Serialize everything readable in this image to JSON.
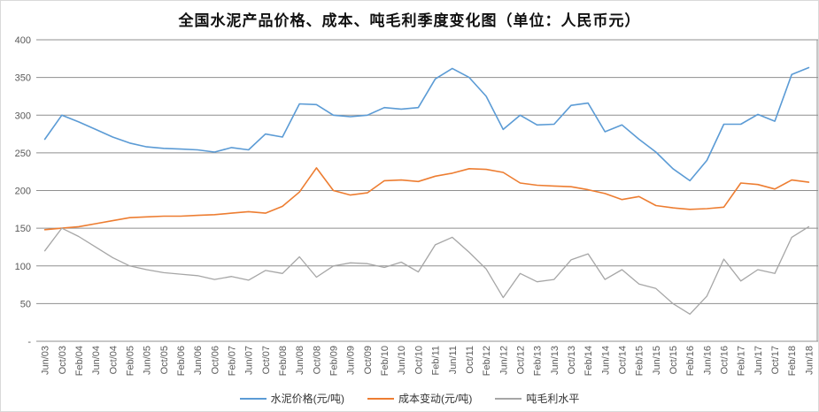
{
  "title": "全国水泥产品价格、成本、吨毛利季度变化图（单位：人民币元）",
  "colors": {
    "price_line": "#5b9bd5",
    "cost_line": "#ed7d31",
    "margin_line": "#a6a6a6",
    "gridline": "#8f8f8f",
    "tick_text": "#595959",
    "page_border": "#d9d9d9"
  },
  "chart_data": {
    "type": "line",
    "title": "全国水泥产品价格、成本、吨毛利季度变化图（单位：人民币元）",
    "xlabel": "",
    "ylabel": "",
    "ylim": [
      0,
      400
    ],
    "y_tick_step": 50,
    "y_tick_labels": [
      "400",
      "350",
      "300",
      "250",
      "200",
      "150",
      "100",
      "50",
      "-"
    ],
    "grid": true,
    "legend_position": "bottom",
    "categories": [
      "Jun/03",
      "Oct/03",
      "Feb/04",
      "Jun/04",
      "Oct/04",
      "Feb/05",
      "Jun/05",
      "Oct/05",
      "Feb/06",
      "Jun/06",
      "Oct/06",
      "Feb/07",
      "Jun/07",
      "Oct/07",
      "Feb/08",
      "Jun/08",
      "Oct/08",
      "Feb/09",
      "Jun/09",
      "Oct/09",
      "Feb/10",
      "Jun/10",
      "Oct/10",
      "Feb/11",
      "Jun/11",
      "Oct/11",
      "Feb/12",
      "Jun/12",
      "Oct/12",
      "Feb/13",
      "Jun/13",
      "Oct/13",
      "Feb/14",
      "Jun/14",
      "Oct/14",
      "Feb/15",
      "Jun/15",
      "Oct/15",
      "Feb/16",
      "Jun/16",
      "Oct/16",
      "Feb/17",
      "Jun/17",
      "Oct/17",
      "Feb/18",
      "Jun/18"
    ],
    "series": [
      {
        "name": "水泥价格(元/吨)",
        "color": "#5b9bd5",
        "width": 1.6,
        "values": [
          268,
          300,
          291,
          281,
          271,
          263,
          258,
          256,
          255,
          254,
          251,
          257,
          254,
          275,
          271,
          315,
          314,
          300,
          298,
          300,
          310,
          308,
          310,
          348,
          362,
          350,
          325,
          281,
          300,
          287,
          288,
          313,
          316,
          278,
          287,
          268,
          251,
          229,
          213,
          240,
          288,
          288,
          301,
          292,
          354,
          363
        ]
      },
      {
        "name": "成本变动(元/吨)",
        "color": "#ed7d31",
        "width": 1.6,
        "values": [
          148,
          150,
          152,
          156,
          160,
          164,
          165,
          166,
          166,
          167,
          168,
          170,
          172,
          170,
          179,
          198,
          230,
          200,
          194,
          197,
          213,
          214,
          212,
          219,
          223,
          229,
          228,
          224,
          210,
          207,
          206,
          205,
          201,
          196,
          188,
          192,
          180,
          177,
          175,
          176,
          178,
          210,
          208,
          202,
          214,
          211
        ]
      },
      {
        "name": "吨毛利水平",
        "color": "#a6a6a6",
        "width": 1.3,
        "values": [
          120,
          150,
          139,
          125,
          111,
          100,
          95,
          91,
          89,
          87,
          82,
          86,
          81,
          94,
          90,
          112,
          85,
          100,
          104,
          103,
          98,
          105,
          92,
          128,
          138,
          118,
          96,
          58,
          90,
          79,
          82,
          108,
          116,
          82,
          95,
          76,
          70,
          50,
          36,
          60,
          109,
          80,
          95,
          90,
          138,
          152
        ]
      }
    ]
  }
}
